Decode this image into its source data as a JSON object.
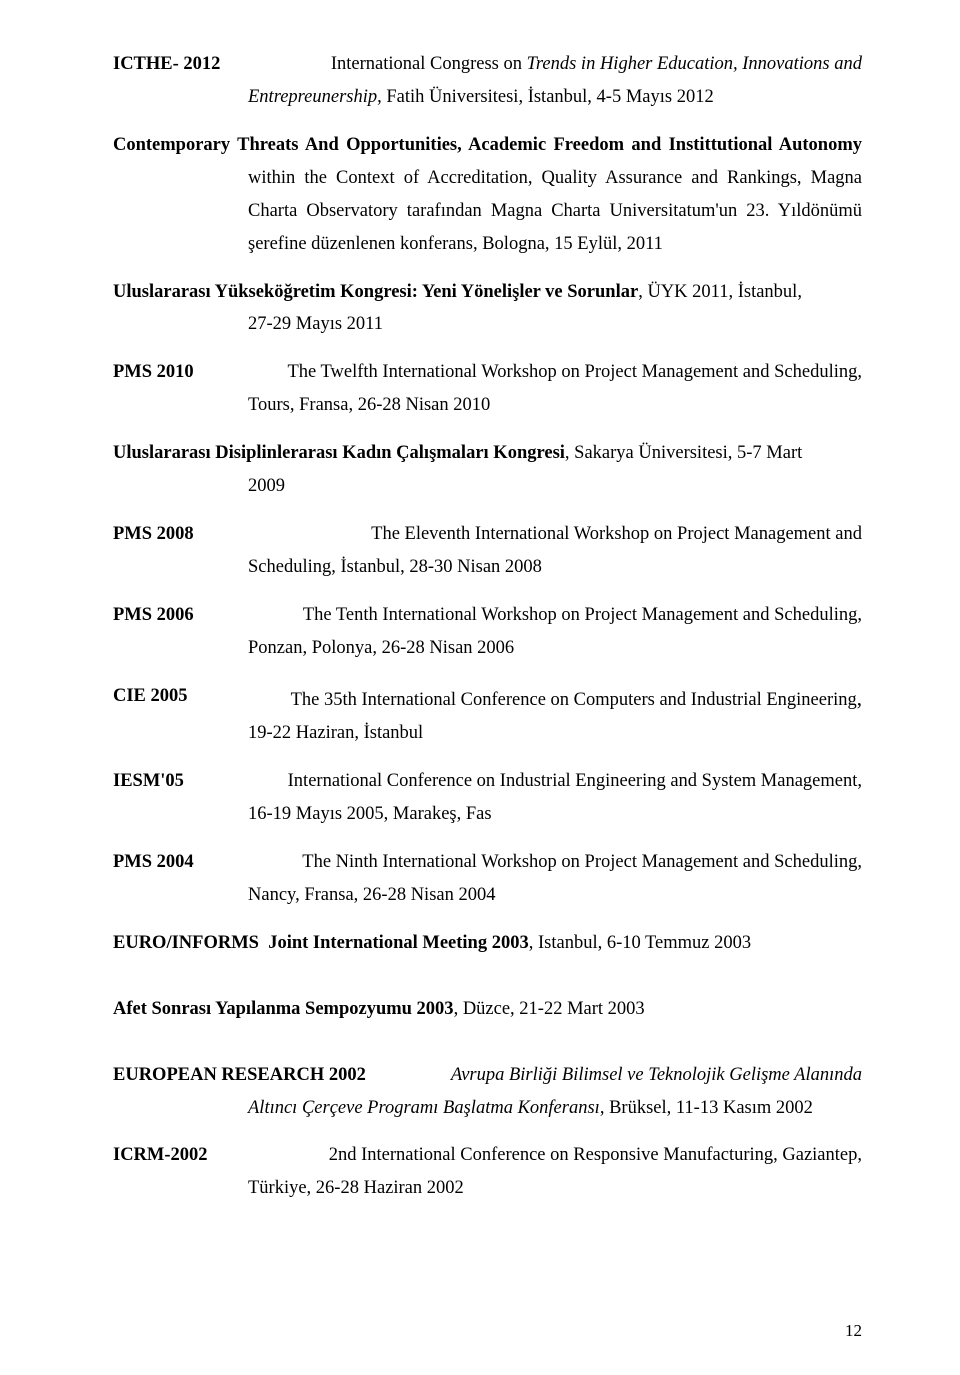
{
  "entries": [
    {
      "label": "ICTHE- 2012",
      "line1_plain_a": "International Congress on ",
      "line1_italic": "Trends in Higher Education, Innovations and",
      "desc_italic": "Entrepreunership",
      "desc_plain": ", Fatih Üniversitesi, İstanbul, 4-5 Mayıs 2012"
    },
    {
      "full_line1_bold": "Contemporary Threats And Opportunities, Academic Freedom and Instittutional Autonomy",
      "desc_plain": "within the Context of Accreditation, Quality Assurance and Rankings, Magna Charta Observatory tarafından Magna Charta Universitatum'un 23. Yıldönümü şerefine düzenlenen konferans, Bologna, 15 Eylül, 2011"
    },
    {
      "line1_bold": "Uluslararası Yükseköğretim Kongresi: Yeni Yönelişler ve Sorunlar",
      "line1_plain": ", ÜYK 2011, İstanbul,",
      "desc_plain": "27-29 Mayıs 2011"
    },
    {
      "label": "PMS 2010",
      "line1_plain_a": "The Twelfth International Workshop on Project Management and Scheduling,",
      "desc_plain": "Tours, Fransa, 26-28 Nisan 2010"
    },
    {
      "line1_bold": "Uluslararası Disiplinlerarası Kadın Çalışmaları Kongresi",
      "line1_plain": ", Sakarya Üniversitesi, 5-7 Mart",
      "desc_plain": "2009"
    },
    {
      "label": "PMS 2008",
      "line1_plain_a": "The Eleventh International Workshop on Project Management and",
      "desc_plain": "Scheduling, İstanbul, 28-30 Nisan 2008"
    },
    {
      "label": "PMS 2006",
      "line1_plain_a": "The Tenth International Workshop on Project Management and Scheduling,",
      "desc_plain": "Ponzan, Polonya, 26-28 Nisan 2006"
    },
    {
      "label": "CIE 2005",
      "line1_plain_a": "The 35th International Conference on Computers and Industrial Engineering",
      "line1_trail": ",",
      "desc_plain": "19-22 Haziran, İstanbul"
    },
    {
      "label": "IESM'05",
      "line1_plain_a": "International Conference on Industrial Engineering and System Management,",
      "desc_plain": "16-19 Mayıs 2005, Marakeş, Fas"
    },
    {
      "label": "PMS 2004",
      "line1_plain_a": "The Ninth International Workshop on Project Management and Scheduling,",
      "desc_plain": "Nancy, Fransa, 26-28 Nisan 2004"
    }
  ],
  "euroinforms": {
    "text": "EURO/INFORMS  Joint International Meeting 2003",
    "tail": ", Istanbul, 6-10 Temmuz 2003"
  },
  "afet": {
    "text": "Afet Sonrası Yapılanma Sempozyumu 2003",
    "tail": ", Düzce, 21-22 Mart 2003"
  },
  "euroresearch": {
    "label": "EUROPEAN RESEARCH 2002",
    "line1_italic": "Avrupa Birliği Bilimsel ve Teknolojik Gelişme Alanında",
    "desc_italic": "Altıncı Çerçeve Programı Başlatma Konferansı",
    "desc_plain": ", Brüksel, 11-13 Kasım 2002"
  },
  "icrm": {
    "label": "ICRM-2002",
    "line1_plain_a": "2nd International Conference on Responsive Manufacturing, Gaziantep,",
    "desc_plain": "Türkiye, 26-28 Haziran 2002"
  },
  "page_number": "12"
}
